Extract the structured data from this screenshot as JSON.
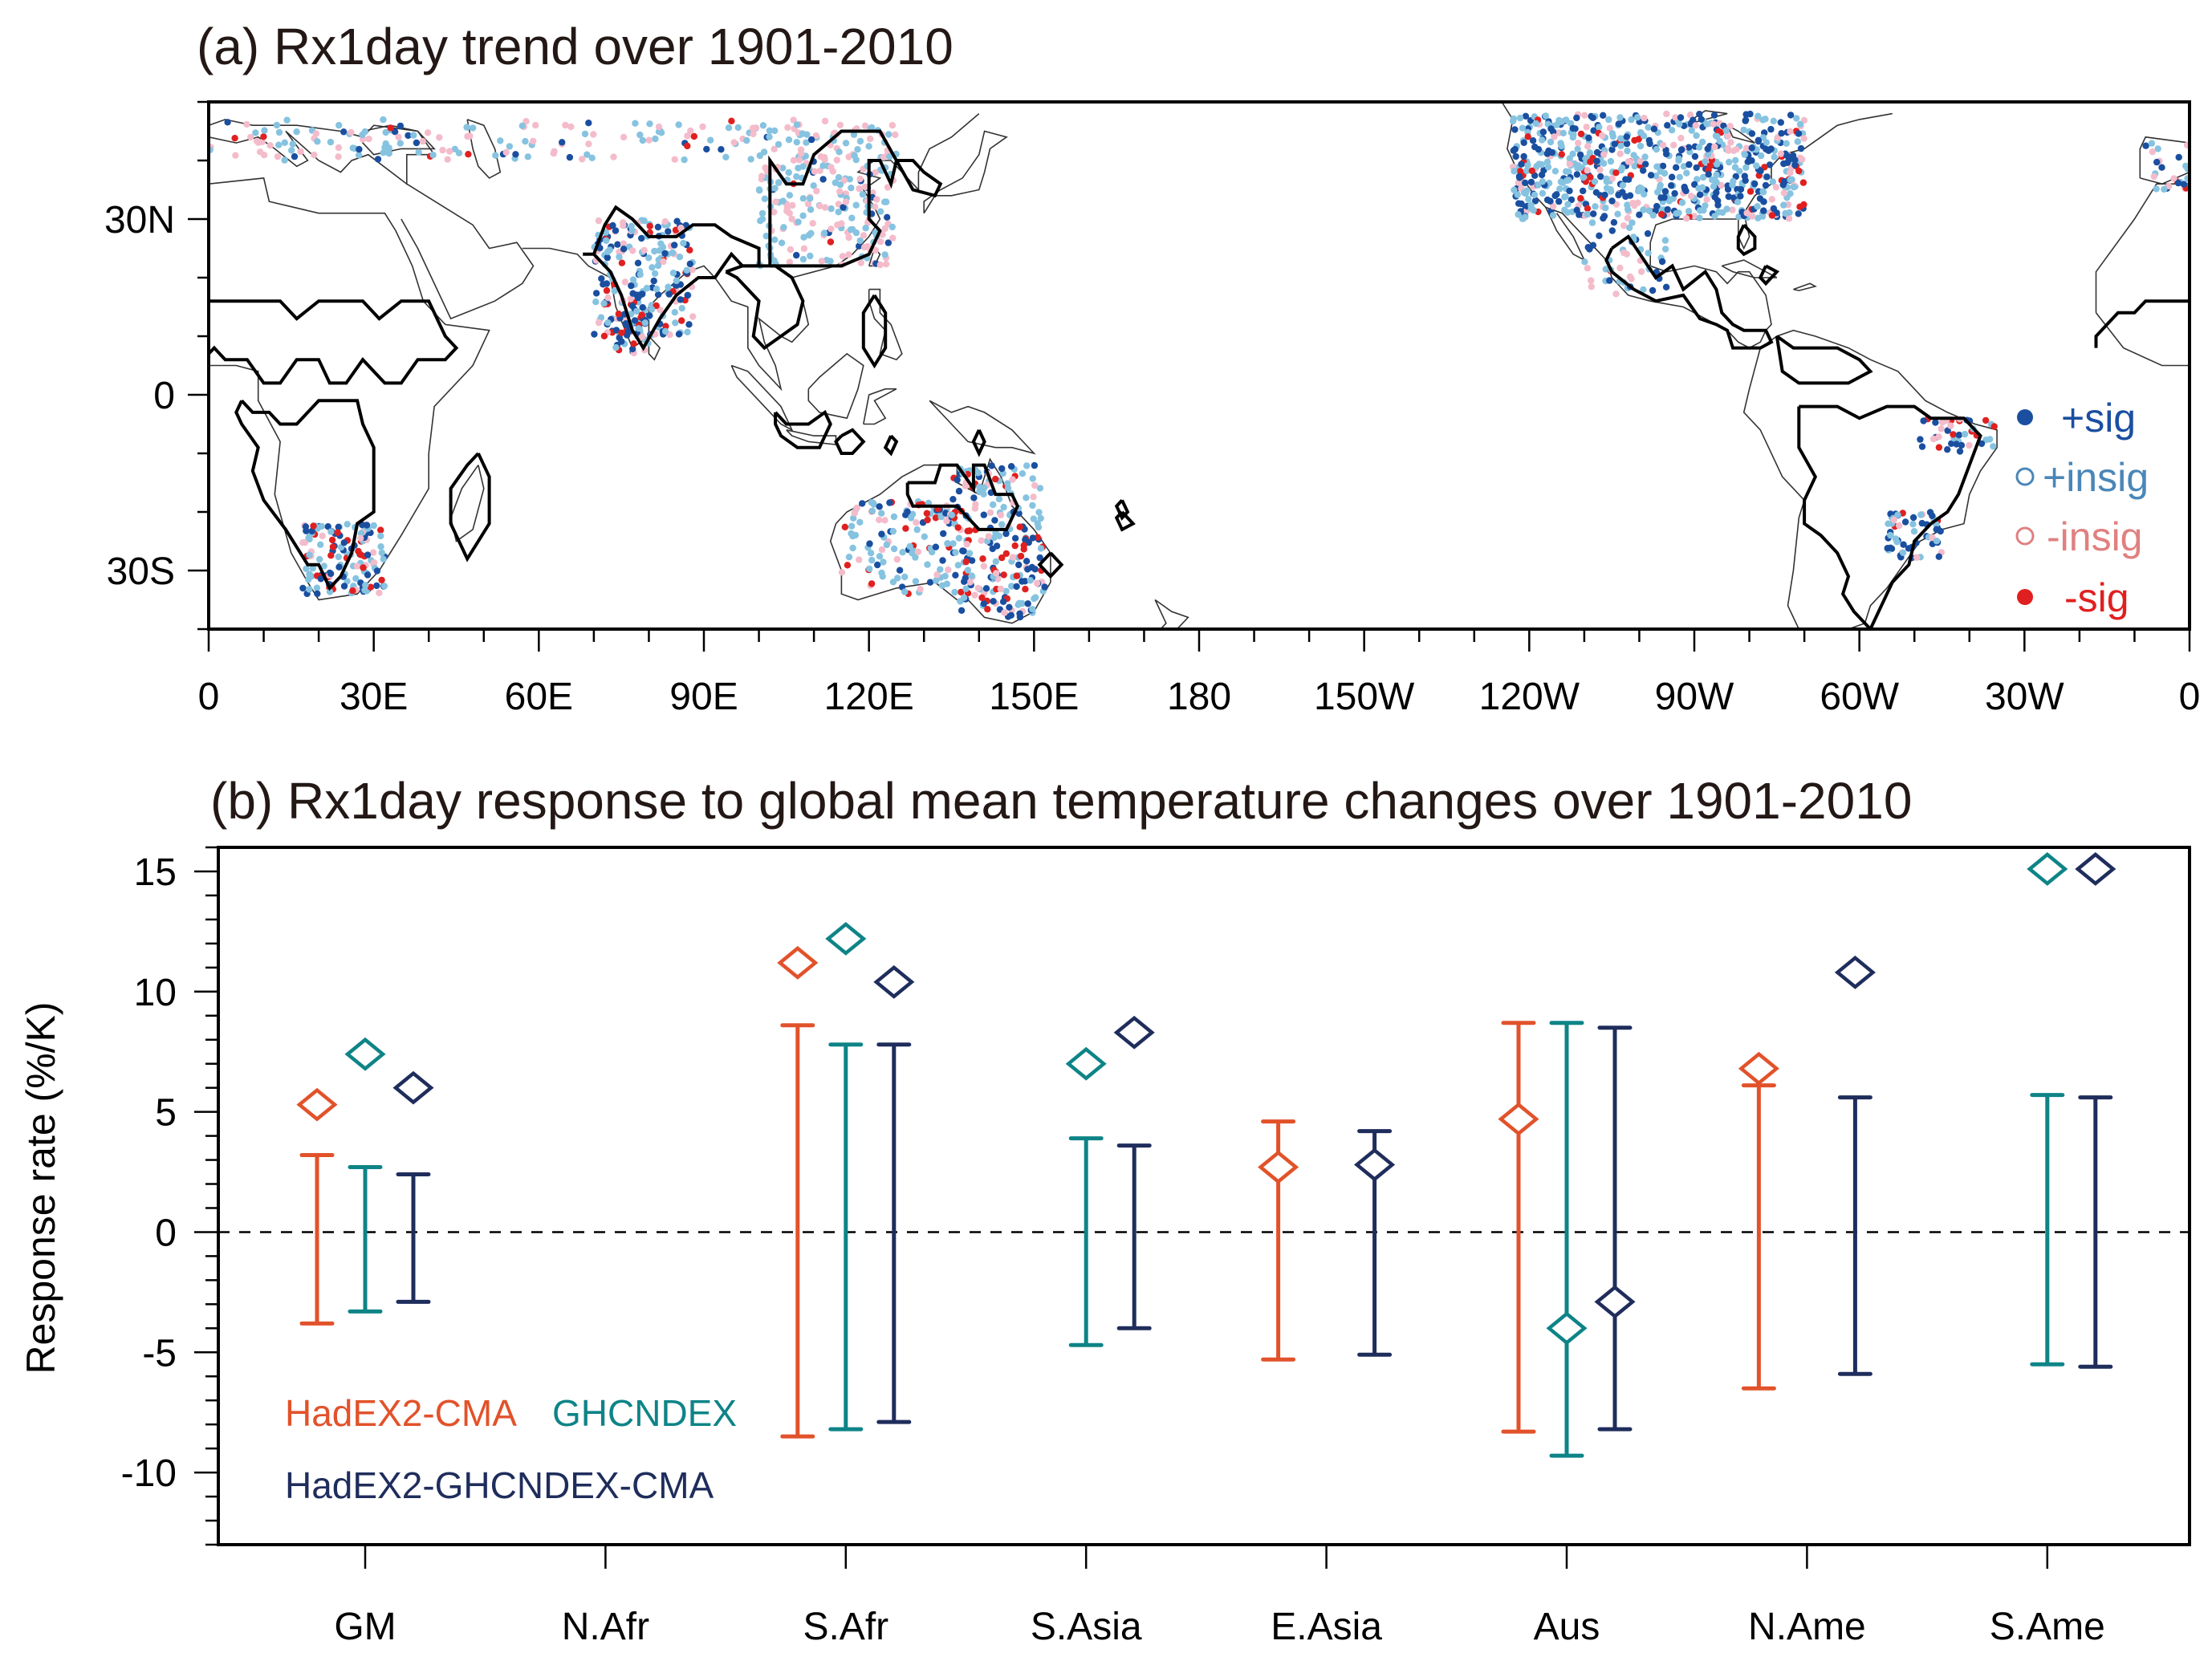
{
  "panel_a": {
    "title": "(a) Rx1day trend over 1901-2010",
    "lat_ticks": [
      {
        "value": 30,
        "label": "30N"
      },
      {
        "value": 0,
        "label": "0"
      },
      {
        "value": -30,
        "label": "30S"
      }
    ],
    "lon_ticks": [
      {
        "value": 0,
        "label": "0"
      },
      {
        "value": 30,
        "label": "30E"
      },
      {
        "value": 60,
        "label": "60E"
      },
      {
        "value": 90,
        "label": "90E"
      },
      {
        "value": 120,
        "label": "120E"
      },
      {
        "value": 150,
        "label": "150E"
      },
      {
        "value": 180,
        "label": "180"
      },
      {
        "value": 210,
        "label": "150W"
      },
      {
        "value": 240,
        "label": "120W"
      },
      {
        "value": 270,
        "label": "90W"
      },
      {
        "value": 300,
        "label": "60W"
      },
      {
        "value": 330,
        "label": "30W"
      },
      {
        "value": 360,
        "label": "0"
      }
    ],
    "lat_range": [
      -40,
      50
    ],
    "lon_range": [
      0,
      360
    ],
    "legend": [
      {
        "key": "pos_sig",
        "label": "+sig",
        "marker": "filled",
        "color": "#1a4fa0"
      },
      {
        "key": "pos_insig",
        "label": "+insig",
        "marker": "open",
        "color": "#4a86b8",
        "dot_color": "#86c3e0"
      },
      {
        "key": "neg_insig",
        "label": "-insig",
        "marker": "open",
        "color": "#e08080",
        "dot_color": "#f4bccb"
      },
      {
        "key": "neg_sig",
        "label": "-sig",
        "marker": "filled",
        "color": "#e02020"
      }
    ]
  },
  "chart_data": {
    "type": "scatter",
    "title": "(b) Rx1day response to global mean temperature changes over 1901-2010",
    "xlabel": "",
    "ylabel": "Response rate (%/K)",
    "ylim": [
      -13,
      16
    ],
    "yticks": [
      15,
      10,
      5,
      0,
      -5,
      -10
    ],
    "ytick_labels": [
      "15",
      "10",
      "5",
      "0",
      "-5",
      "-10"
    ],
    "minor_ytick_step": 1,
    "categories": [
      "GM",
      "N.Afr",
      "S.Afr",
      "S.Asia",
      "E.Asia",
      "Aus",
      "N.Ame",
      "S.Ame"
    ],
    "zero_line": "dashed",
    "legend_placement": "bottom-left",
    "series": [
      {
        "name": "HadEX2-CMA",
        "color": "#e2522a",
        "values": [
          5.3,
          null,
          11.2,
          null,
          2.7,
          4.7,
          6.8,
          null
        ],
        "ci_upper": [
          3.2,
          null,
          8.6,
          null,
          4.6,
          8.7,
          6.1,
          null
        ],
        "ci_lower": [
          -3.8,
          null,
          -8.5,
          null,
          -5.3,
          -8.3,
          -6.5,
          null
        ]
      },
      {
        "name": "GHCNDEX",
        "color": "#0e8487",
        "values": [
          7.4,
          null,
          12.2,
          7.0,
          null,
          -4.0,
          null,
          15.1
        ],
        "ci_upper": [
          2.7,
          null,
          7.8,
          3.9,
          null,
          8.7,
          null,
          5.7
        ],
        "ci_lower": [
          -3.3,
          null,
          -8.2,
          -4.7,
          null,
          -9.3,
          null,
          -5.5
        ]
      },
      {
        "name": "HadEX2-GHCNDEX-CMA",
        "color": "#1f2d5c",
        "values": [
          6.0,
          null,
          10.4,
          8.3,
          2.8,
          -2.9,
          10.8,
          15.1
        ],
        "ci_upper": [
          2.4,
          null,
          7.8,
          3.6,
          4.2,
          8.5,
          5.6,
          5.6
        ],
        "ci_lower": [
          -2.9,
          null,
          -7.9,
          -4.0,
          -5.1,
          -8.2,
          -5.9,
          -5.6
        ]
      }
    ]
  }
}
